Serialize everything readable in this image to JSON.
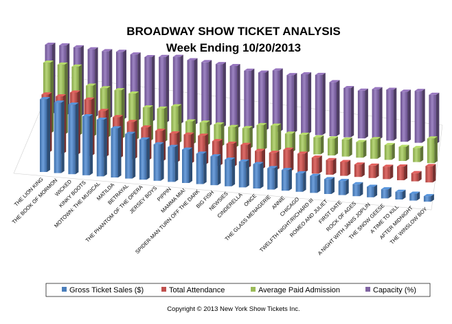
{
  "chart_data": {
    "type": "bar",
    "title": "BROADWAY SHOW TICKET ANALYSIS",
    "subtitle": "Week Ending  10/20/2013",
    "xlabel": "",
    "ylabel": "",
    "ylim": [
      0,
      100
    ],
    "grid": false,
    "legend_position": "bottom",
    "categories": [
      "THE LION KING",
      "THE BOOK OF MORMON",
      "WICKED",
      "KINKY BOOTS",
      "MOTOWN: THE MUSICAL",
      "MATILDA",
      "BETRAYAL",
      "THE PHANTOM OF THE OPERA",
      "JERSEY BOYS",
      "PIPPIN",
      "MAMMA MIA!",
      "SPIDER-MAN TURN OFF THE DARK",
      "BIG FISH",
      "NEWSIES",
      "CINDERELLA",
      "ONCE",
      "THE GLASS MENAGERIE",
      "ANNIE",
      "CHICAGO",
      "TWELFTH NIGHT/RICHARD III",
      "ROMEO AND JULIET",
      "FIRST DATE",
      "ROCK OF AGES",
      "A NIGHT WITH JANIS JOPLIN",
      "THE SNOW GEESE",
      "A TIME TO KILL",
      "AFTER MIDNIGHT",
      "THE WINSLOW BOY"
    ],
    "series": [
      {
        "name": "Gross Ticket Sales ($)",
        "color": "#4a7ebb",
        "values": [
          98,
          95,
          94,
          80,
          77,
          67,
          61,
          55,
          50,
          48,
          46,
          42,
          40,
          37,
          36,
          34,
          30,
          29,
          26,
          24,
          21,
          20,
          17,
          15,
          13,
          11,
          10,
          8
        ]
      },
      {
        "name": "Total Attendance",
        "color": "#c0504d",
        "values": [
          80,
          79,
          86,
          78,
          64,
          57,
          52,
          46,
          43,
          41,
          41,
          41,
          35,
          33,
          33,
          26,
          25,
          31,
          27,
          23,
          21,
          20,
          18,
          18,
          18,
          20,
          12,
          24
        ]
      },
      {
        "name": "Average Paid Admission",
        "color": "#9bbb59",
        "values": [
          99,
          98,
          97,
          72,
          70,
          69,
          66,
          48,
          48,
          53,
          33,
          33,
          32,
          30,
          30,
          36,
          37,
          27,
          27,
          25,
          25,
          25,
          23,
          29,
          22,
          21,
          21,
          37
        ]
      },
      {
        "name": "Capacity (%)",
        "color": "#8064a2",
        "values": [
          99,
          100,
          99,
          98,
          97,
          98,
          96,
          94,
          96,
          98,
          95,
          94,
          93,
          92,
          87,
          86,
          91,
          86,
          89,
          90,
          81,
          74,
          72,
          76,
          77,
          76,
          79,
          75
        ]
      }
    ]
  },
  "footer": {
    "copyright": "Copyright © 2013 New York Show Tickets Inc."
  }
}
